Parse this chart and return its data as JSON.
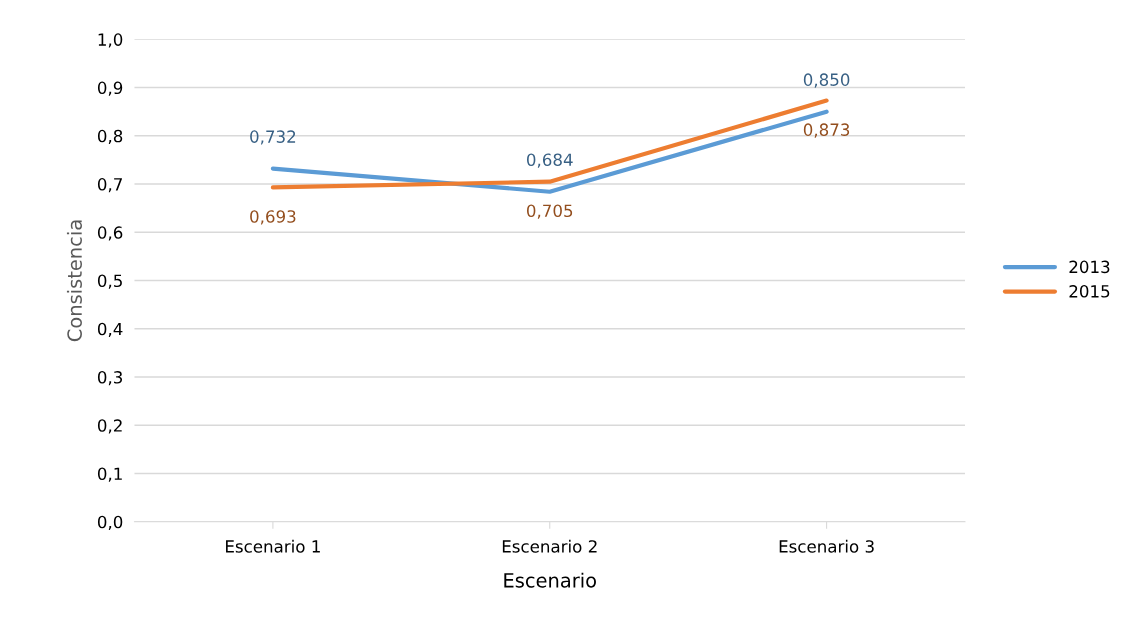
{
  "chart_data": {
    "type": "line",
    "xlabel": "Escenario",
    "ylabel": "Consistencia",
    "categories": [
      "Escenario 1",
      "Escenario 2",
      "Escenario 3"
    ],
    "series": [
      {
        "name": "2013",
        "color": "#5b9bd5",
        "values": [
          0.732,
          0.684,
          0.85
        ],
        "value_labels": [
          "0,732",
          "0,684",
          "0,850"
        ]
      },
      {
        "name": "2015",
        "color": "#ed7d31",
        "values": [
          0.693,
          0.705,
          0.873
        ],
        "value_labels": [
          "0,693",
          "0,705",
          "0,873"
        ]
      }
    ],
    "ylim": [
      0,
      1
    ],
    "yticks": [
      {
        "value": 0,
        "label": "0,0"
      },
      {
        "value": 0.1,
        "label": "0,1"
      },
      {
        "value": 0.2,
        "label": "0,2"
      },
      {
        "value": 0.3,
        "label": "0,3"
      },
      {
        "value": 0.4,
        "label": "0,4"
      },
      {
        "value": 0.5,
        "label": "0,5"
      },
      {
        "value": 0.6,
        "label": "0,6"
      },
      {
        "value": 0.7,
        "label": "0,7"
      },
      {
        "value": 0.8,
        "label": "0,8"
      },
      {
        "value": 0.9,
        "label": "0,9"
      },
      {
        "value": 1,
        "label": "1,0"
      }
    ],
    "grid": "y",
    "legend": "right",
    "marker": "none",
    "line_style": "solid"
  }
}
